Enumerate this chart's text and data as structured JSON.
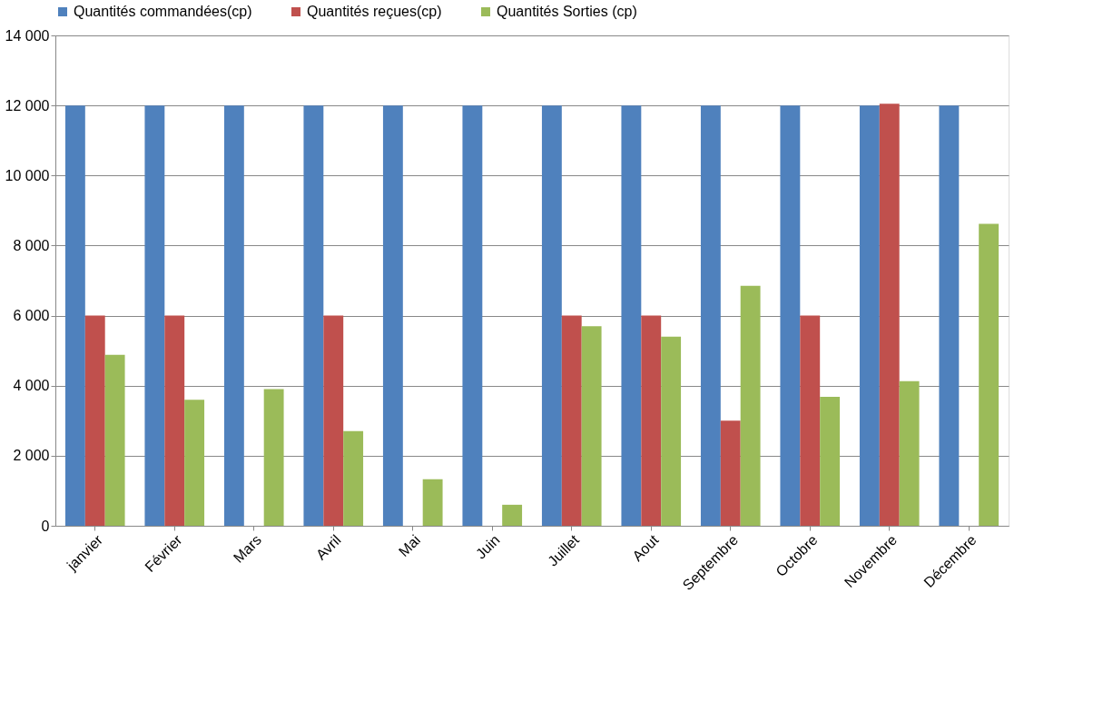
{
  "chart_data": {
    "type": "bar",
    "categories": [
      "janvier",
      "Février",
      "Mars",
      "Avril",
      "Mai",
      "Juin",
      "Juillet",
      "Aout",
      "Septembre",
      "Octobre",
      "Novembre",
      "Décembre"
    ],
    "series": [
      {
        "name": "Quantités commandées(cp)",
        "color": "#4f81bd",
        "values": [
          12000,
          12000,
          12000,
          12000,
          12000,
          12000,
          12000,
          12000,
          12000,
          12000,
          12000,
          12000
        ]
      },
      {
        "name": "Quantités reçues(cp)",
        "color": "#c0504d",
        "values": [
          6000,
          6000,
          null,
          6000,
          null,
          null,
          6000,
          6000,
          3000,
          6000,
          12050,
          null
        ]
      },
      {
        "name": "Quantités Sorties (cp)",
        "color": "#9bbb59",
        "values": [
          4880,
          3600,
          3900,
          2700,
          1330,
          600,
          5700,
          5400,
          6850,
          3680,
          4130,
          8620
        ]
      }
    ],
    "ylim": [
      0,
      14000
    ],
    "yticks": [
      {
        "value": 0,
        "label": "0"
      },
      {
        "value": 2000,
        "label": "2 000"
      },
      {
        "value": 4000,
        "label": "4 000"
      },
      {
        "value": 6000,
        "label": "6 000"
      },
      {
        "value": 8000,
        "label": "8 000"
      },
      {
        "value": 10000,
        "label": "10 000"
      },
      {
        "value": 12000,
        "label": "12 000"
      },
      {
        "value": 14000,
        "label": "14 000"
      }
    ],
    "grid": "y",
    "legend": "top"
  }
}
